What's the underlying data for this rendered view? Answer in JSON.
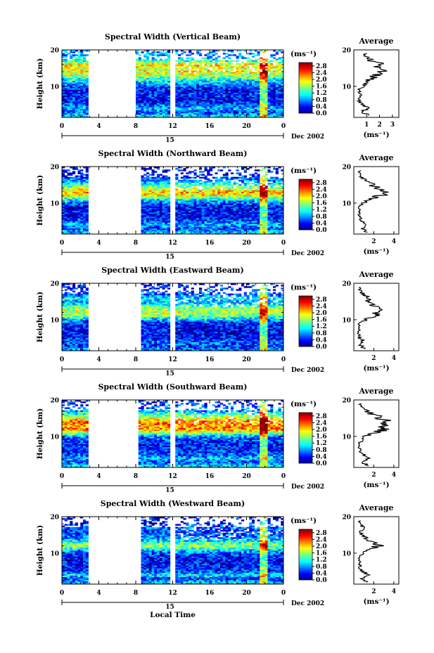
{
  "figure": {
    "xlabel": "Local Time",
    "date_label": "Dec 2002",
    "day_tick": "15",
    "ylabel": "Height (km)",
    "unit": "(ms⁻¹)",
    "avg_title": "Average",
    "avg_xlabel": "(ms⁻¹)"
  },
  "chart_data": [
    {
      "type": "heatmap",
      "title": "Spectral Width (Vertical Beam)",
      "xlabel": "Local Time",
      "ylabel": "Height (km)",
      "x_ticks": [
        "0",
        "4",
        "8",
        "12",
        "16",
        "20",
        "0"
      ],
      "xlim": [
        0,
        24
      ],
      "y_ticks": [
        "20",
        "10"
      ],
      "ylim": [
        1.5,
        20
      ],
      "colorbar": {
        "label": "(ms⁻¹)",
        "ticks": [
          "2.8",
          "2.4",
          "2.0",
          "1.6",
          "1.2",
          "0.8",
          "0.4",
          "0.0"
        ],
        "range": [
          0,
          3.0
        ]
      },
      "data_gaps_hours": [
        [
          3,
          8
        ],
        [
          11.6,
          12.2
        ]
      ],
      "average_profile": {
        "type": "line",
        "title": "Average",
        "xlabel": "(ms⁻¹)",
        "x_ticks": [
          "1",
          "2",
          "3"
        ],
        "xlim": [
          0,
          3.5
        ],
        "ylim": [
          1.5,
          20
        ],
        "y_ticks": [
          "20",
          "10"
        ],
        "height_km": [
          2,
          3,
          4,
          5,
          6,
          7,
          8,
          9,
          10,
          11,
          12,
          13,
          14,
          15,
          16,
          17,
          18,
          19
        ],
        "width_ms": [
          1.2,
          0.6,
          1.1,
          0.7,
          0.4,
          0.5,
          0.5,
          0.4,
          0.7,
          1.0,
          1.3,
          1.8,
          2.1,
          1.9,
          2.2,
          1.4,
          1.0,
          0.8
        ]
      }
    },
    {
      "type": "heatmap",
      "title": "Spectral Width (Northward Beam)",
      "xlabel": "Local Time",
      "ylabel": "Height (km)",
      "x_ticks": [
        "0",
        "4",
        "8",
        "12",
        "16",
        "20",
        "0"
      ],
      "xlim": [
        0,
        24
      ],
      "y_ticks": [
        "20",
        "10"
      ],
      "ylim": [
        1.5,
        20
      ],
      "colorbar": {
        "label": "(ms⁻¹)",
        "ticks": [
          "2.8",
          "2.4",
          "2.0",
          "1.6",
          "1.2",
          "0.8",
          "0.4",
          "0.0"
        ],
        "range": [
          0,
          3.0
        ]
      },
      "data_gaps_hours": [
        [
          3,
          8.5
        ],
        [
          11.7,
          12.2
        ]
      ],
      "average_profile": {
        "type": "line",
        "title": "Average",
        "xlabel": "(ms⁻¹)",
        "x_ticks": [
          "2",
          "4"
        ],
        "xlim": [
          0,
          4.5
        ],
        "ylim": [
          1.5,
          20
        ],
        "y_ticks": [
          "20",
          "10"
        ],
        "height_km": [
          2,
          3,
          4,
          5,
          6,
          7,
          8,
          9,
          10,
          11,
          12,
          13,
          14,
          15,
          16,
          17,
          18,
          19
        ],
        "width_ms": [
          1.4,
          0.8,
          1.3,
          0.9,
          0.6,
          0.5,
          0.6,
          0.5,
          0.9,
          1.6,
          2.6,
          3.0,
          2.4,
          1.8,
          1.2,
          0.8,
          0.6,
          0.5
        ]
      }
    },
    {
      "type": "heatmap",
      "title": "Spectral Width (Eastward Beam)",
      "xlabel": "Local Time",
      "ylabel": "Height (km)",
      "x_ticks": [
        "0",
        "4",
        "8",
        "12",
        "16",
        "20",
        "0"
      ],
      "xlim": [
        0,
        24
      ],
      "y_ticks": [
        "20",
        "10"
      ],
      "ylim": [
        1.5,
        20
      ],
      "colorbar": {
        "label": "(ms⁻¹)",
        "ticks": [
          "2.8",
          "2.4",
          "2.0",
          "1.6",
          "1.2",
          "0.8",
          "0.4",
          "0.0"
        ],
        "range": [
          0,
          3.0
        ]
      },
      "data_gaps_hours": [
        [
          3,
          8.6
        ],
        [
          11.7,
          12.2
        ]
      ],
      "average_profile": {
        "type": "line",
        "title": "Average",
        "xlabel": "(ms⁻¹)",
        "x_ticks": [
          "2",
          "4"
        ],
        "xlim": [
          0,
          4.5
        ],
        "ylim": [
          1.5,
          20
        ],
        "y_ticks": [
          "20",
          "10"
        ],
        "height_km": [
          2,
          3,
          4,
          5,
          6,
          7,
          8,
          9,
          10,
          11,
          12,
          13,
          14,
          15,
          16,
          17,
          18,
          19
        ],
        "width_ms": [
          1.1,
          0.7,
          1.0,
          0.6,
          0.5,
          0.5,
          0.5,
          0.6,
          1.2,
          2.0,
          2.5,
          2.2,
          1.8,
          1.2,
          1.6,
          0.9,
          0.7,
          0.5
        ]
      }
    },
    {
      "type": "heatmap",
      "title": "Spectral Width (Southward Beam)",
      "xlabel": "Local Time",
      "ylabel": "Height (km)",
      "x_ticks": [
        "0",
        "4",
        "8",
        "12",
        "16",
        "20",
        "0"
      ],
      "xlim": [
        0,
        24
      ],
      "y_ticks": [
        "20",
        "10"
      ],
      "ylim": [
        1.5,
        20
      ],
      "colorbar": {
        "label": "(ms⁻¹)",
        "ticks": [
          "2.8",
          "2.4",
          "2.0",
          "1.6",
          "1.2",
          "0.8",
          "0.4",
          "0.0"
        ],
        "range": [
          0,
          3.0
        ]
      },
      "data_gaps_hours": [
        [
          3,
          8.3
        ],
        [
          11.7,
          12.2
        ]
      ],
      "average_profile": {
        "type": "line",
        "title": "Average",
        "xlabel": "(ms⁻¹)",
        "x_ticks": [
          "2",
          "4"
        ],
        "xlim": [
          0,
          4.5
        ],
        "ylim": [
          1.5,
          20
        ],
        "y_ticks": [
          "20",
          "10"
        ],
        "height_km": [
          2,
          3,
          4,
          5,
          6,
          7,
          8,
          9,
          10,
          11,
          12,
          13,
          14,
          15,
          16,
          17,
          18,
          19
        ],
        "width_ms": [
          1.5,
          0.8,
          1.4,
          0.9,
          0.7,
          0.6,
          0.6,
          0.8,
          1.1,
          2.3,
          3.2,
          3.0,
          3.4,
          2.6,
          2.0,
          1.2,
          0.8,
          0.6
        ]
      }
    },
    {
      "type": "heatmap",
      "title": "Spectral Width (Westward Beam)",
      "xlabel": "Local Time",
      "ylabel": "Height (km)",
      "x_ticks": [
        "0",
        "4",
        "8",
        "12",
        "16",
        "20",
        "0"
      ],
      "xlim": [
        0,
        24
      ],
      "y_ticks": [
        "20",
        "10"
      ],
      "ylim": [
        1.5,
        20
      ],
      "colorbar": {
        "label": "(ms⁻¹)",
        "ticks": [
          "2.8",
          "2.4",
          "2.0",
          "1.6",
          "1.2",
          "0.8",
          "0.4",
          "0.0"
        ],
        "range": [
          0,
          3.0
        ]
      },
      "data_gaps_hours": [
        [
          3,
          8.6
        ],
        [
          11.7,
          12.2
        ]
      ],
      "average_profile": {
        "type": "line",
        "title": "Average",
        "xlabel": "(ms⁻¹)",
        "x_ticks": [
          "2",
          "4"
        ],
        "xlim": [
          0,
          4.5
        ],
        "ylim": [
          1.5,
          20
        ],
        "y_ticks": [
          "20",
          "10"
        ],
        "height_km": [
          2,
          3,
          4,
          5,
          6,
          7,
          8,
          9,
          10,
          11,
          12,
          13,
          14,
          15,
          16,
          17,
          18,
          19
        ],
        "width_ms": [
          1.3,
          0.7,
          1.6,
          0.8,
          0.6,
          0.6,
          0.5,
          0.6,
          0.9,
          1.5,
          2.4,
          1.8,
          1.2,
          0.9,
          0.7,
          1.0,
          0.6,
          0.5
        ]
      }
    }
  ]
}
